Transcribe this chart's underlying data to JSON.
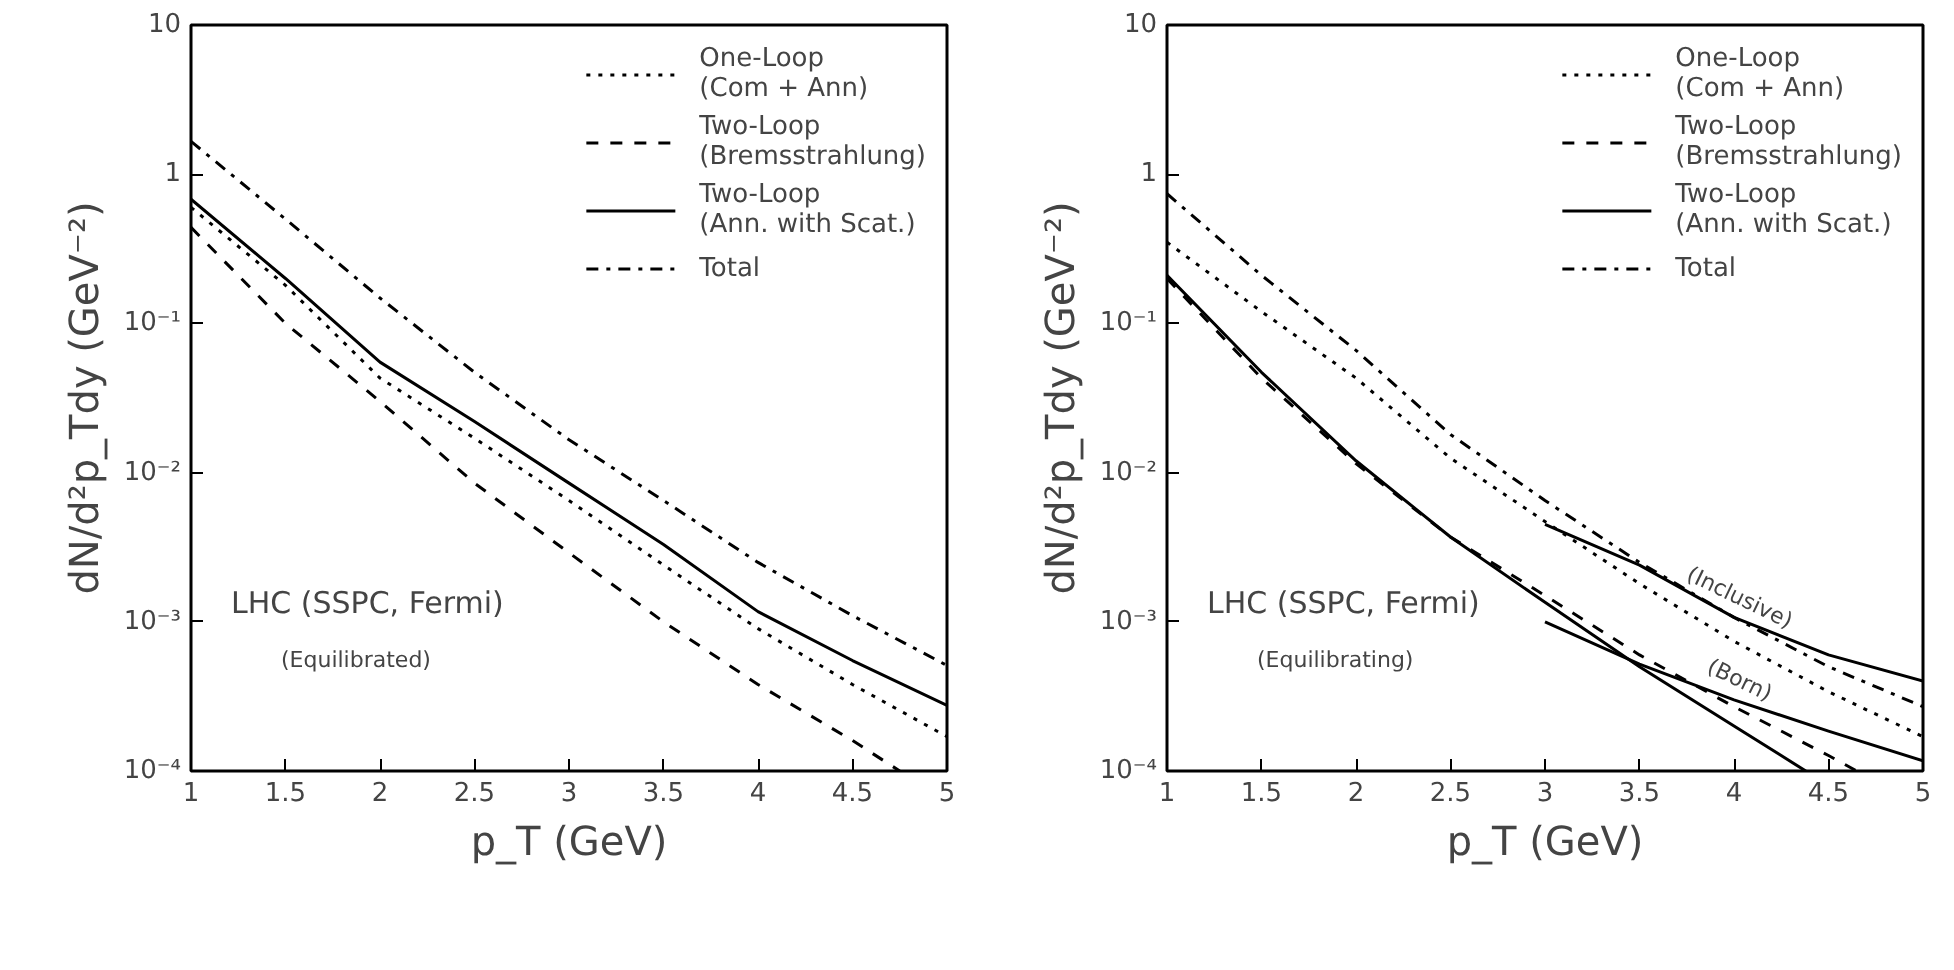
{
  "chart_data": [
    {
      "type": "line",
      "xlabel": "p_T (GeV)",
      "ylabel": "dN/d²p_Tdy (GeV⁻²)",
      "log": "y",
      "xlim": [
        1,
        5
      ],
      "ylim": [
        0.0001,
        10
      ],
      "xticks": [
        1,
        1.5,
        2,
        2.5,
        3,
        3.5,
        4,
        4.5,
        5
      ],
      "yticks": [
        {
          "value": 0.0001,
          "label": "10⁻⁴"
        },
        {
          "value": 0.001,
          "label": "10⁻³"
        },
        {
          "value": 0.01,
          "label": "10⁻²"
        },
        {
          "value": 0.1,
          "label": "10⁻¹"
        },
        1,
        10
      ],
      "grid": false,
      "legend": "top right",
      "x": [
        1,
        1.5,
        2,
        2.5,
        3,
        3.5,
        4,
        4.5,
        5
      ],
      "series": [
        {
          "name": "One-Loop\n(Com + Ann)",
          "color": "#000000",
          "line_style": "dotted",
          "values": [
            0.6,
            0.18,
            0.043,
            0.017,
            0.0065,
            0.0024,
            0.0009,
            0.00038,
            0.00017
          ]
        },
        {
          "name": "Two-Loop\n(Bremsstrahlung)",
          "color": "#000000",
          "line_style": "dashed",
          "x": [
            1,
            1.5,
            2,
            2.5,
            3,
            3.5,
            4,
            4.5,
            4.75
          ],
          "values": [
            0.44,
            0.1,
            0.03,
            0.0085,
            0.0029,
            0.001,
            0.00038,
            0.00016,
            0.0001
          ]
        },
        {
          "name": "Two-Loop\n(Ann. with Scat.)",
          "color": "#000000",
          "line_style": "solid",
          "values": [
            0.68,
            0.2,
            0.055,
            0.022,
            0.0085,
            0.0033,
            0.00117,
            0.00055,
            0.000275
          ]
        },
        {
          "name": "Total",
          "color": "#000000",
          "line_style": "dashdot",
          "values": [
            1.66,
            0.5,
            0.148,
            0.047,
            0.0166,
            0.0065,
            0.0025,
            0.0011,
            0.00051
          ]
        }
      ],
      "annotations": [
        "LHC (SSPC, Fermi)",
        "(Equilibrated)"
      ]
    },
    {
      "type": "line",
      "xlabel": "p_T (GeV)",
      "ylabel": "dN/d²p_Tdy (GeV⁻²)",
      "log": "y",
      "xlim": [
        1,
        5
      ],
      "ylim": [
        0.0001,
        10
      ],
      "xticks": [
        1,
        1.5,
        2,
        2.5,
        3,
        3.5,
        4,
        4.5,
        5
      ],
      "yticks": [
        {
          "value": 0.0001,
          "label": "10⁻⁴"
        },
        {
          "value": 0.001,
          "label": "10⁻³"
        },
        {
          "value": 0.01,
          "label": "10⁻²"
        },
        {
          "value": 0.1,
          "label": "10⁻¹"
        },
        1,
        10
      ],
      "grid": false,
      "legend": "top right",
      "x": [
        1,
        1.5,
        2,
        2.5,
        3,
        3.5,
        4,
        4.5,
        5
      ],
      "series": [
        {
          "name": "One-Loop\n(Com + Ann)",
          "color": "#000000",
          "line_style": "dotted",
          "values": [
            0.35,
            0.12,
            0.043,
            0.0125,
            0.0047,
            0.0018,
            0.00074,
            0.00034,
            0.00017
          ]
        },
        {
          "name": "Two-Loop\n(Bremsstrahlung)",
          "color": "#000000",
          "line_style": "dashed",
          "x": [
            1,
            1.5,
            2,
            2.5,
            3,
            3.5,
            4,
            4.5,
            4.65
          ],
          "values": [
            0.2,
            0.043,
            0.0115,
            0.0037,
            0.0015,
            0.0006,
            0.00027,
            0.000127,
            0.0001
          ]
        },
        {
          "name": "Two-Loop\n(Ann. with Scat.)",
          "color": "#000000",
          "line_style": "solid",
          "x": [
            1,
            1.5,
            2,
            2.5,
            3,
            3.5,
            4,
            4.38
          ],
          "values": [
            0.21,
            0.047,
            0.012,
            0.0037,
            0.00135,
            0.0005,
            0.0002,
            0.0001
          ]
        },
        {
          "name": "Total",
          "color": "#000000",
          "line_style": "dashdot",
          "values": [
            0.74,
            0.21,
            0.066,
            0.018,
            0.0065,
            0.0025,
            0.00107,
            0.0005,
            0.00027
          ]
        },
        {
          "color": "#000000",
          "line_style": "solid",
          "x": [
            3,
            3.5,
            4,
            4.5,
            5
          ],
          "values": [
            0.0045,
            0.0024,
            0.00107,
            0.0006,
            0.0004
          ]
        },
        {
          "color": "#000000",
          "line_style": "solid",
          "x": [
            3,
            3.5,
            4,
            4.5,
            5
          ],
          "values": [
            0.001,
            0.00052,
            0.0003,
            0.000185,
            0.000117
          ]
        }
      ],
      "annotations": [
        "LHC (SSPC, Fermi)",
        "(Equilibrating)",
        "(Inclusive)",
        "(Born)"
      ]
    }
  ]
}
